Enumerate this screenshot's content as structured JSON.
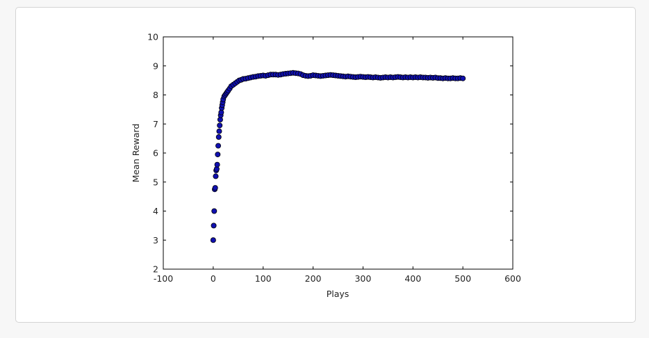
{
  "chart_data": {
    "type": "scatter",
    "xlabel": "Plays",
    "ylabel": "Mean Reward",
    "xlim": [
      -100,
      600
    ],
    "ylim": [
      2,
      10
    ],
    "x_ticks": [
      "-100",
      "0",
      "100",
      "200",
      "300",
      "400",
      "500",
      "600"
    ],
    "y_ticks": [
      "2",
      "3",
      "4",
      "5",
      "6",
      "7",
      "8",
      "9",
      "10"
    ],
    "grid": false,
    "marker_color": "#1010b0",
    "marker_edge": "#000000",
    "series": [
      {
        "x": [
          0,
          1,
          2,
          3,
          4,
          5,
          6,
          7,
          8,
          9,
          10,
          11,
          12,
          13,
          14,
          15,
          16,
          17,
          18,
          19,
          20,
          22,
          24,
          26,
          28,
          30,
          33,
          36,
          40,
          44,
          48,
          52,
          56,
          60,
          65,
          70,
          75,
          80,
          85,
          90,
          95,
          100,
          105,
          110,
          115,
          120,
          125,
          130,
          135,
          140,
          145,
          150,
          155,
          160,
          165,
          170,
          175,
          180,
          185,
          190,
          195,
          200,
          205,
          210,
          215,
          220,
          225,
          230,
          235,
          240,
          245,
          250,
          255,
          260,
          265,
          270,
          275,
          280,
          285,
          290,
          295,
          300,
          305,
          310,
          315,
          320,
          325,
          330,
          335,
          340,
          345,
          350,
          355,
          360,
          365,
          370,
          375,
          380,
          385,
          390,
          395,
          400,
          405,
          410,
          415,
          420,
          425,
          430,
          435,
          440,
          445,
          450,
          455,
          460,
          465,
          470,
          475,
          480,
          485,
          490,
          495,
          500
        ],
        "y": [
          3.0,
          3.5,
          4.0,
          4.75,
          4.8,
          5.2,
          5.4,
          5.45,
          5.6,
          5.95,
          6.25,
          6.55,
          6.75,
          6.95,
          7.15,
          7.3,
          7.4,
          7.55,
          7.65,
          7.75,
          7.85,
          7.95,
          8.0,
          8.05,
          8.1,
          8.15,
          8.22,
          8.3,
          8.35,
          8.4,
          8.45,
          8.5,
          8.52,
          8.55,
          8.56,
          8.58,
          8.6,
          8.62,
          8.63,
          8.65,
          8.66,
          8.67,
          8.66,
          8.68,
          8.7,
          8.7,
          8.7,
          8.69,
          8.7,
          8.72,
          8.73,
          8.74,
          8.75,
          8.76,
          8.75,
          8.74,
          8.72,
          8.68,
          8.66,
          8.65,
          8.66,
          8.68,
          8.67,
          8.66,
          8.65,
          8.66,
          8.67,
          8.68,
          8.69,
          8.68,
          8.67,
          8.66,
          8.65,
          8.64,
          8.63,
          8.64,
          8.63,
          8.62,
          8.61,
          8.62,
          8.63,
          8.62,
          8.61,
          8.62,
          8.61,
          8.6,
          8.61,
          8.6,
          8.59,
          8.6,
          8.61,
          8.6,
          8.61,
          8.6,
          8.61,
          8.62,
          8.61,
          8.6,
          8.61,
          8.6,
          8.61,
          8.6,
          8.61,
          8.6,
          8.61,
          8.6,
          8.6,
          8.59,
          8.6,
          8.59,
          8.6,
          8.58,
          8.58,
          8.57,
          8.58,
          8.57,
          8.57,
          8.58,
          8.57,
          8.57,
          8.58,
          8.57
        ]
      }
    ]
  }
}
